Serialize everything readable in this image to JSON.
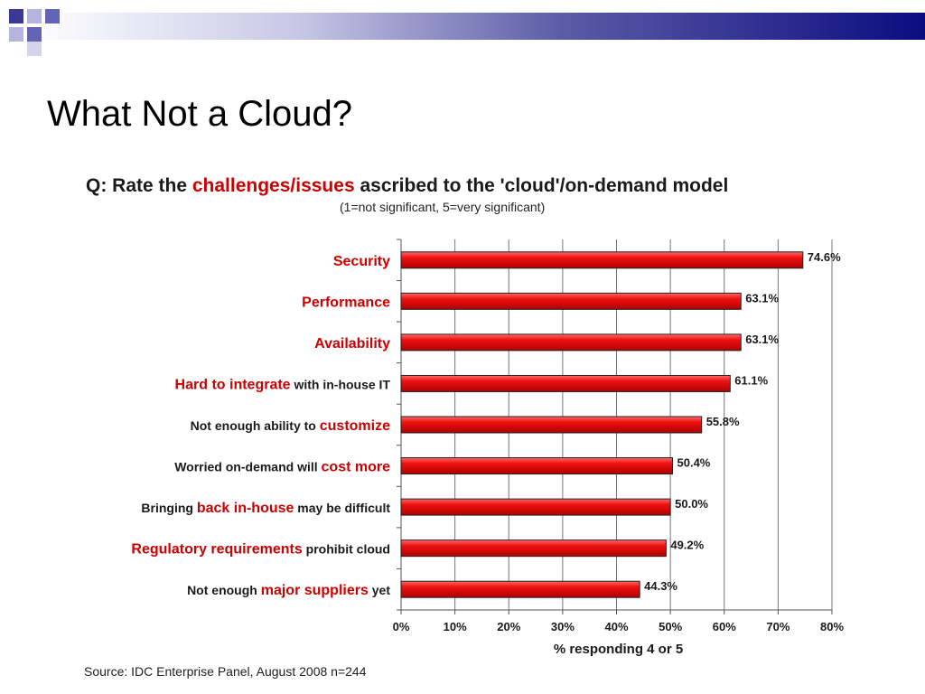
{
  "slide": {
    "title": "What Not a Cloud?",
    "source": "Source: IDC Enterprise Panel, August 2008  n=244"
  },
  "chart_data": {
    "type": "bar",
    "orientation": "horizontal",
    "title": {
      "parts": [
        {
          "text": "Q: Rate the ",
          "highlight": false
        },
        {
          "text": "challenges/issues",
          "highlight": true
        },
        {
          "text": " ascribed to the 'cloud'/on-demand model",
          "highlight": false
        }
      ]
    },
    "subtitle": "(1=not significant, 5=very significant)",
    "xlabel": "% responding 4 or 5",
    "xlim": [
      0,
      80
    ],
    "xticks": [
      "0%",
      "10%",
      "20%",
      "30%",
      "40%",
      "50%",
      "60%",
      "70%",
      "80%"
    ],
    "grid": true,
    "categories": [
      {
        "parts": [
          {
            "text": "Security",
            "highlight": true
          }
        ]
      },
      {
        "parts": [
          {
            "text": "Performance",
            "highlight": true
          }
        ]
      },
      {
        "parts": [
          {
            "text": "Availability",
            "highlight": true
          }
        ]
      },
      {
        "parts": [
          {
            "text": "Hard to integrate",
            "highlight": true
          },
          {
            "text": " with in-house IT",
            "highlight": false
          }
        ]
      },
      {
        "parts": [
          {
            "text": "Not enough ability to ",
            "highlight": false
          },
          {
            "text": "customize",
            "highlight": true
          }
        ]
      },
      {
        "parts": [
          {
            "text": "Worried on-demand will ",
            "highlight": false
          },
          {
            "text": "cost more",
            "highlight": true
          }
        ]
      },
      {
        "parts": [
          {
            "text": "Bringing ",
            "highlight": false
          },
          {
            "text": "back in-house",
            "highlight": true
          },
          {
            "text": " may be difficult",
            "highlight": false
          }
        ]
      },
      {
        "parts": [
          {
            "text": "Regulatory requirements",
            "highlight": true
          },
          {
            "text": " prohibit cloud",
            "highlight": false
          }
        ]
      },
      {
        "parts": [
          {
            "text": "Not enough ",
            "highlight": false
          },
          {
            "text": "major suppliers",
            "highlight": true
          },
          {
            "text": " yet",
            "highlight": false
          }
        ]
      }
    ],
    "values": [
      74.6,
      63.1,
      63.1,
      61.1,
      55.8,
      50.4,
      50.0,
      49.2,
      44.3
    ],
    "value_labels": [
      "74.6%",
      "63.1%",
      "63.1%",
      "61.1%",
      "55.8%",
      "50.4%",
      "50.0%",
      "49.2%",
      "44.3%"
    ],
    "colors": {
      "bar": "#ee1111",
      "highlight_text": "#cc0000",
      "plain_text": "#1a1a1a"
    }
  },
  "theme": {
    "logo_squares": [
      "#3a3a96",
      "#b4b4dc",
      "#6464b4",
      "#d2d2ec"
    ]
  }
}
